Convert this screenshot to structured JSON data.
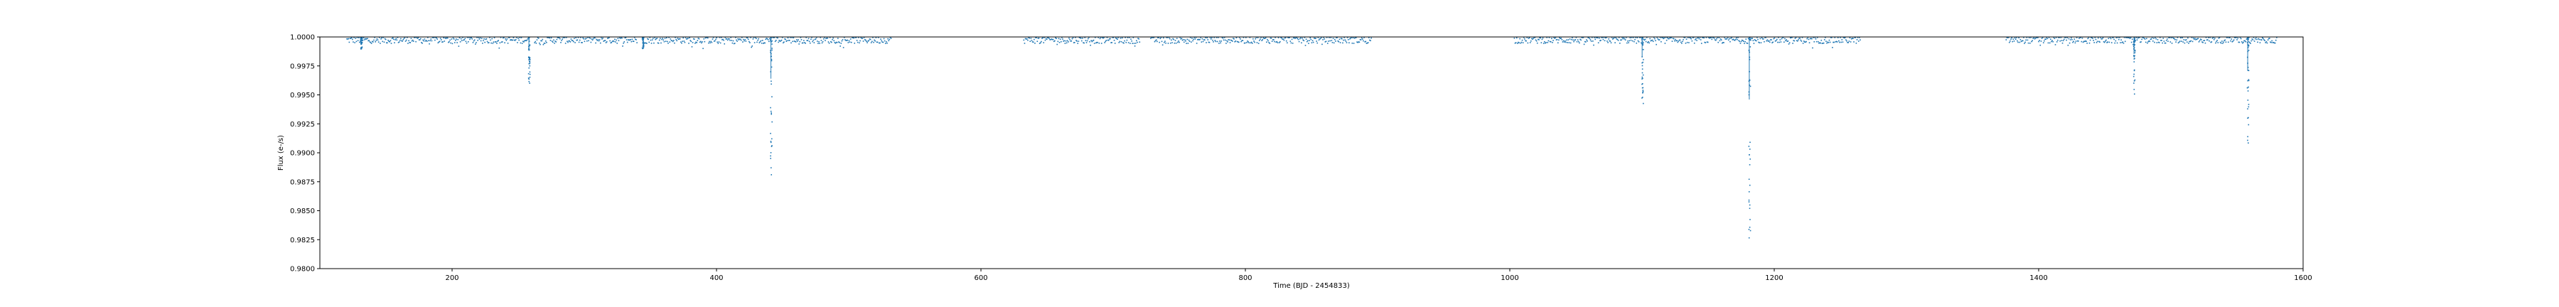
{
  "chart_data": {
    "type": "scatter",
    "title": "",
    "xlabel": "Time (BJD - 2454833)",
    "ylabel": "Flux (e-/s)",
    "xlim": [
      100,
      1600
    ],
    "ylim": [
      0.98,
      1.0
    ],
    "grid": false,
    "legend": "none",
    "x_ticks": [
      200,
      400,
      600,
      800,
      1000,
      1200,
      1400,
      1600
    ],
    "y_ticks": [
      "0.9800",
      "0.9825",
      "0.9850",
      "0.9875",
      "0.9900",
      "0.9925",
      "0.9950",
      "0.9975",
      "1.0000"
    ],
    "series": [
      {
        "color": "#1f77b4",
        "baseline": 0.9997,
        "segments": [
          [
            120,
            258
          ],
          [
            262,
            340
          ],
          [
            345,
            532
          ],
          [
            632,
            720
          ],
          [
            728,
            895
          ],
          [
            1003,
            1265
          ],
          [
            1375,
            1580
          ]
        ],
        "dips": [
          {
            "x": 131,
            "depth": 0.999
          },
          {
            "x": 258,
            "depth": 0.996
          },
          {
            "x": 344,
            "depth": 0.999
          },
          {
            "x": 441,
            "depth": 0.988
          },
          {
            "x": 1100,
            "depth": 0.9943
          },
          {
            "x": 1181,
            "depth": 0.982
          },
          {
            "x": 1472,
            "depth": 0.9951
          },
          {
            "x": 1558,
            "depth": 0.9904
          }
        ]
      }
    ]
  }
}
